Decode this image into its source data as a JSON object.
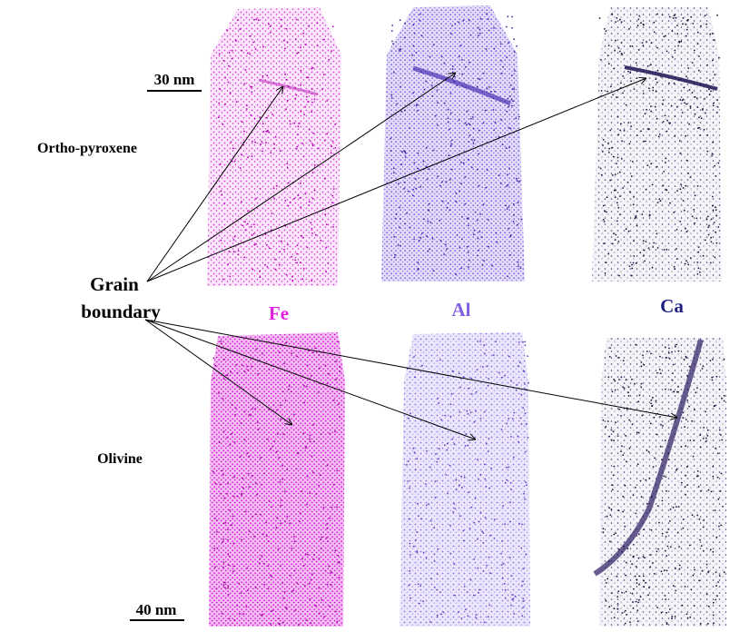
{
  "scale_bars": {
    "top": "30 nm",
    "bottom": "40 nm"
  },
  "rows": [
    {
      "label": "Ortho-pyroxene"
    },
    {
      "label": "Olivine"
    }
  ],
  "annotation": {
    "line1": "Grain",
    "line2": "boundary"
  },
  "elements": [
    "Fe",
    "Al",
    "Ca"
  ]
}
